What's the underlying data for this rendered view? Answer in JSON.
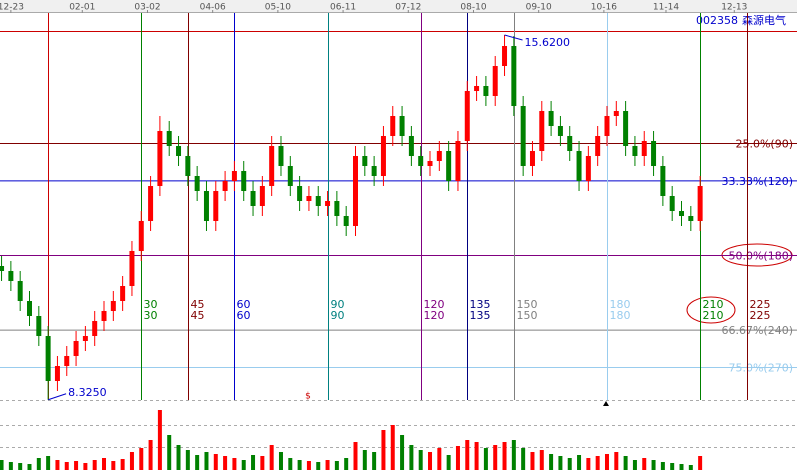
{
  "chart_data": {
    "type": "candlestick",
    "code": "002358",
    "name": "森源电气",
    "up_color": "#ff0000",
    "down_color": "#008000",
    "x": [
      -15,
      -12,
      -9,
      -6,
      -3,
      0,
      3,
      6,
      9,
      12,
      15,
      18,
      21,
      24,
      27,
      30,
      33,
      36,
      39,
      42,
      45,
      48,
      51,
      54,
      57,
      60,
      63,
      66,
      69,
      72,
      75,
      78,
      81,
      84,
      87,
      90,
      93,
      96,
      99,
      102,
      105,
      108,
      111,
      114,
      117,
      120,
      123,
      126,
      129,
      132,
      135,
      138,
      141,
      144,
      147,
      150,
      153,
      156,
      159,
      162,
      165,
      168,
      171,
      174,
      177,
      180,
      183,
      186,
      189,
      192,
      195,
      198,
      201,
      204,
      207,
      210
    ],
    "xlim": [
      -15.5,
      241.2
    ],
    "ylim": [
      8.2,
      15.76
    ],
    "open": [
      11.0,
      10.9,
      10.7,
      10.3,
      10.0,
      9.6,
      8.7,
      9.0,
      9.2,
      9.5,
      9.6,
      9.9,
      10.1,
      10.3,
      10.6,
      11.3,
      11.9,
      12.6,
      13.7,
      13.4,
      13.2,
      12.8,
      12.5,
      11.9,
      12.5,
      12.7,
      12.9,
      12.5,
      12.2,
      12.6,
      13.4,
      13.0,
      12.6,
      12.3,
      12.4,
      12.2,
      12.3,
      12.0,
      11.8,
      13.2,
      13.0,
      12.8,
      13.6,
      14.0,
      13.6,
      13.2,
      13.0,
      13.1,
      13.3,
      12.7,
      13.5,
      14.5,
      14.6,
      14.4,
      15.0,
      15.4,
      14.2,
      13.0,
      13.3,
      14.1,
      13.8,
      13.6,
      13.3,
      12.7,
      13.2,
      13.6,
      14.0,
      14.1,
      13.4,
      13.2,
      13.5,
      13.0,
      12.4,
      12.1,
      12.0,
      11.9
    ],
    "high": [
      11.2,
      11.1,
      10.9,
      10.5,
      10.2,
      9.8,
      9.2,
      9.4,
      9.7,
      9.8,
      10.1,
      10.3,
      10.5,
      10.8,
      11.5,
      12.1,
      12.8,
      14.0,
      13.9,
      13.6,
      13.4,
      13.0,
      12.7,
      12.7,
      12.9,
      13.1,
      13.1,
      12.7,
      12.8,
      13.6,
      13.6,
      13.2,
      12.8,
      12.6,
      12.6,
      12.5,
      12.5,
      12.2,
      13.4,
      13.4,
      13.2,
      13.8,
      14.2,
      14.2,
      13.8,
      13.4,
      13.3,
      13.5,
      13.5,
      13.7,
      14.7,
      14.8,
      14.8,
      15.2,
      15.62,
      15.6,
      14.4,
      13.5,
      14.3,
      14.3,
      14.0,
      13.8,
      13.5,
      13.4,
      13.8,
      14.2,
      14.3,
      14.3,
      13.6,
      13.7,
      13.7,
      13.2,
      12.6,
      12.3,
      12.2,
      12.8
    ],
    "low": [
      10.7,
      10.5,
      10.1,
      9.8,
      9.4,
      8.325,
      8.5,
      8.8,
      9.0,
      9.3,
      9.4,
      9.7,
      9.9,
      10.1,
      10.4,
      11.1,
      11.7,
      12.4,
      13.2,
      13.0,
      12.6,
      12.3,
      11.7,
      11.7,
      12.3,
      12.5,
      12.3,
      12.0,
      12.0,
      12.4,
      12.8,
      12.4,
      12.1,
      12.1,
      12.0,
      12.0,
      11.8,
      11.6,
      11.6,
      12.8,
      12.6,
      12.6,
      13.4,
      13.4,
      13.0,
      12.8,
      12.8,
      12.9,
      12.5,
      12.5,
      13.3,
      14.3,
      14.2,
      14.2,
      14.8,
      14.0,
      12.8,
      12.8,
      13.1,
      13.6,
      13.4,
      13.1,
      12.5,
      12.5,
      13.0,
      13.4,
      13.8,
      13.2,
      13.0,
      13.0,
      12.8,
      12.2,
      11.9,
      11.8,
      11.7,
      11.7
    ],
    "close": [
      10.9,
      10.7,
      10.3,
      10.0,
      9.6,
      8.7,
      9.0,
      9.2,
      9.5,
      9.6,
      9.9,
      10.1,
      10.3,
      10.6,
      11.3,
      11.9,
      12.6,
      13.7,
      13.4,
      13.2,
      12.8,
      12.5,
      11.9,
      12.5,
      12.7,
      12.9,
      12.5,
      12.2,
      12.6,
      13.4,
      13.0,
      12.6,
      12.3,
      12.4,
      12.2,
      12.3,
      12.0,
      11.8,
      13.2,
      13.0,
      12.8,
      13.6,
      14.0,
      13.6,
      13.2,
      13.0,
      13.1,
      13.3,
      12.7,
      13.5,
      14.5,
      14.6,
      14.4,
      15.0,
      15.4,
      14.2,
      13.0,
      13.3,
      14.1,
      13.8,
      13.6,
      13.3,
      12.7,
      13.2,
      13.6,
      14.0,
      14.1,
      13.4,
      13.2,
      13.5,
      13.0,
      12.4,
      12.1,
      12.0,
      11.9,
      12.6
    ],
    "volume": {
      "values": [
        10,
        8,
        7,
        6,
        12,
        14,
        10,
        8,
        9,
        7,
        10,
        12,
        9,
        11,
        18,
        22,
        30,
        60,
        35,
        25,
        20,
        15,
        18,
        16,
        14,
        12,
        10,
        15,
        14,
        25,
        18,
        12,
        10,
        9,
        8,
        10,
        9,
        12,
        28,
        20,
        18,
        40,
        45,
        35,
        25,
        20,
        18,
        22,
        15,
        24,
        30,
        28,
        22,
        25,
        28,
        30,
        22,
        18,
        20,
        16,
        14,
        12,
        15,
        12,
        14,
        16,
        18,
        14,
        10,
        12,
        10,
        8,
        7,
        6,
        5,
        14
      ],
      "ylim": [
        0,
        70
      ]
    },
    "date_ticks": [
      {
        "value": -12,
        "label": "12-23"
      },
      {
        "value": 11,
        "label": "02-01"
      },
      {
        "value": 32,
        "label": "03-02"
      },
      {
        "value": 53,
        "label": "04-06"
      },
      {
        "value": 74,
        "label": "05-10"
      },
      {
        "value": 95,
        "label": "06-11"
      },
      {
        "value": 116,
        "label": "07-12"
      },
      {
        "value": 137,
        "label": "08-10"
      },
      {
        "value": 158,
        "label": "09-10"
      },
      {
        "value": 179,
        "label": "10-16"
      },
      {
        "value": 199,
        "label": "11-14"
      },
      {
        "value": 221,
        "label": "12-13"
      }
    ],
    "cycles": [
      {
        "value": 0,
        "color": "#cc0000"
      },
      {
        "value": 30,
        "color": "#008000"
      },
      {
        "value": 45,
        "color": "#800000"
      },
      {
        "value": 60,
        "color": "#0000cc"
      },
      {
        "value": 90,
        "color": "#008080"
      },
      {
        "value": 120,
        "color": "#800080"
      },
      {
        "value": 135,
        "color": "#000080"
      },
      {
        "value": 150,
        "color": "#808080"
      },
      {
        "value": 180,
        "color": "#99ccee"
      },
      {
        "value": 210,
        "color": "#008000"
      },
      {
        "value": 225,
        "color": "#800000"
      }
    ],
    "levels": [
      {
        "value": 0,
        "color": "#cc0000"
      },
      {
        "value": 25,
        "label": "25.0%(90)",
        "color": "#800000"
      },
      {
        "value": 33.33,
        "label": "33.33%(120)",
        "color": "#0000cc"
      },
      {
        "value": 50,
        "label": "50.0%(180)",
        "color": "#800080"
      },
      {
        "value": 66.67,
        "label": "66.67%(240)",
        "color": "#808080"
      },
      {
        "value": 75,
        "label": "75.0%(270)",
        "color": "#99ccee"
      }
    ],
    "max_label": {
      "value": 15.62,
      "label": "15.6200",
      "x": 147
    },
    "min_label": {
      "value": 8.325,
      "label": "8.3250",
      "x": 0
    },
    "marker": "$"
  }
}
